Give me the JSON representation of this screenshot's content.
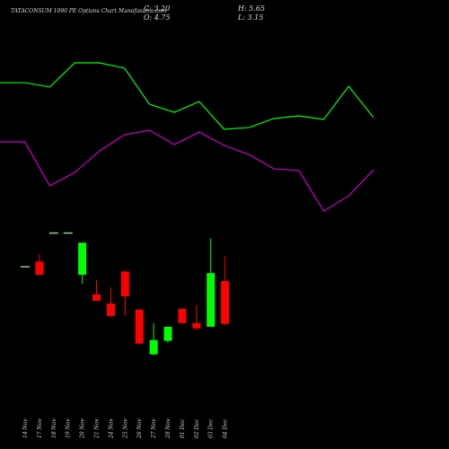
{
  "chart_data": [
    {
      "type": "candlestick",
      "title": "TATACONSUM 1090 PE Options Chart Munafasutra.com",
      "annotations": [
        "C: 3.20",
        "H: 5.65",
        "O: 4.75",
        "L: 3.15"
      ],
      "categories": [
        "14 Nov",
        "17 Nov",
        "18 Nov",
        "19 Nov",
        "20 Nov",
        "21 Nov",
        "24 Nov",
        "25 Nov",
        "26 Nov",
        "27 Nov",
        "28 Nov",
        "01 Dec",
        "02 Dec",
        "03 Dec",
        "04 Dec"
      ],
      "open": [
        5.27,
        5.46,
        6.49,
        6.49,
        4.98,
        4.27,
        3.94,
        5.1,
        3.72,
        2.1,
        2.59,
        3.75,
        3.23,
        3.1,
        4.75
      ],
      "high": [
        5.27,
        5.72,
        6.49,
        6.49,
        6.14,
        4.78,
        4.52,
        5.1,
        3.72,
        3.23,
        3.1,
        3.75,
        3.88,
        6.3,
        5.65
      ],
      "low": [
        5.27,
        4.98,
        6.49,
        6.49,
        4.65,
        4.04,
        3.43,
        3.49,
        2.49,
        2.07,
        2.52,
        3.23,
        2.98,
        3.1,
        3.15
      ],
      "close": [
        5.27,
        4.98,
        6.49,
        6.49,
        6.14,
        4.04,
        3.49,
        4.2,
        2.49,
        2.62,
        3.1,
        3.23,
        3.04,
        5.04,
        3.2
      ],
      "up_color": "#00ff00",
      "down_color": "#ff0000",
      "flat_color": "#99cc99",
      "ylim": [
        1.6,
        6.8
      ]
    },
    {
      "type": "line",
      "series": [
        {
          "name": "",
          "color": "#00ff00",
          "values": [
            75.2,
            75.2,
            72.9,
            85.7,
            85.7,
            82.9,
            63.8,
            59.5,
            65.2,
            50.5,
            51.4,
            56.2,
            57.6,
            55.7,
            73.3,
            56.7
          ]
        },
        {
          "name": "",
          "color": "#cc00cc",
          "values": [
            43.8,
            43.8,
            20.5,
            27.6,
            39.0,
            47.6,
            50.0,
            42.4,
            49.0,
            41.9,
            37.1,
            29.5,
            28.6,
            7.1,
            15.2,
            29.0
          ]
        }
      ],
      "ylim": [
        0,
        100
      ]
    }
  ]
}
